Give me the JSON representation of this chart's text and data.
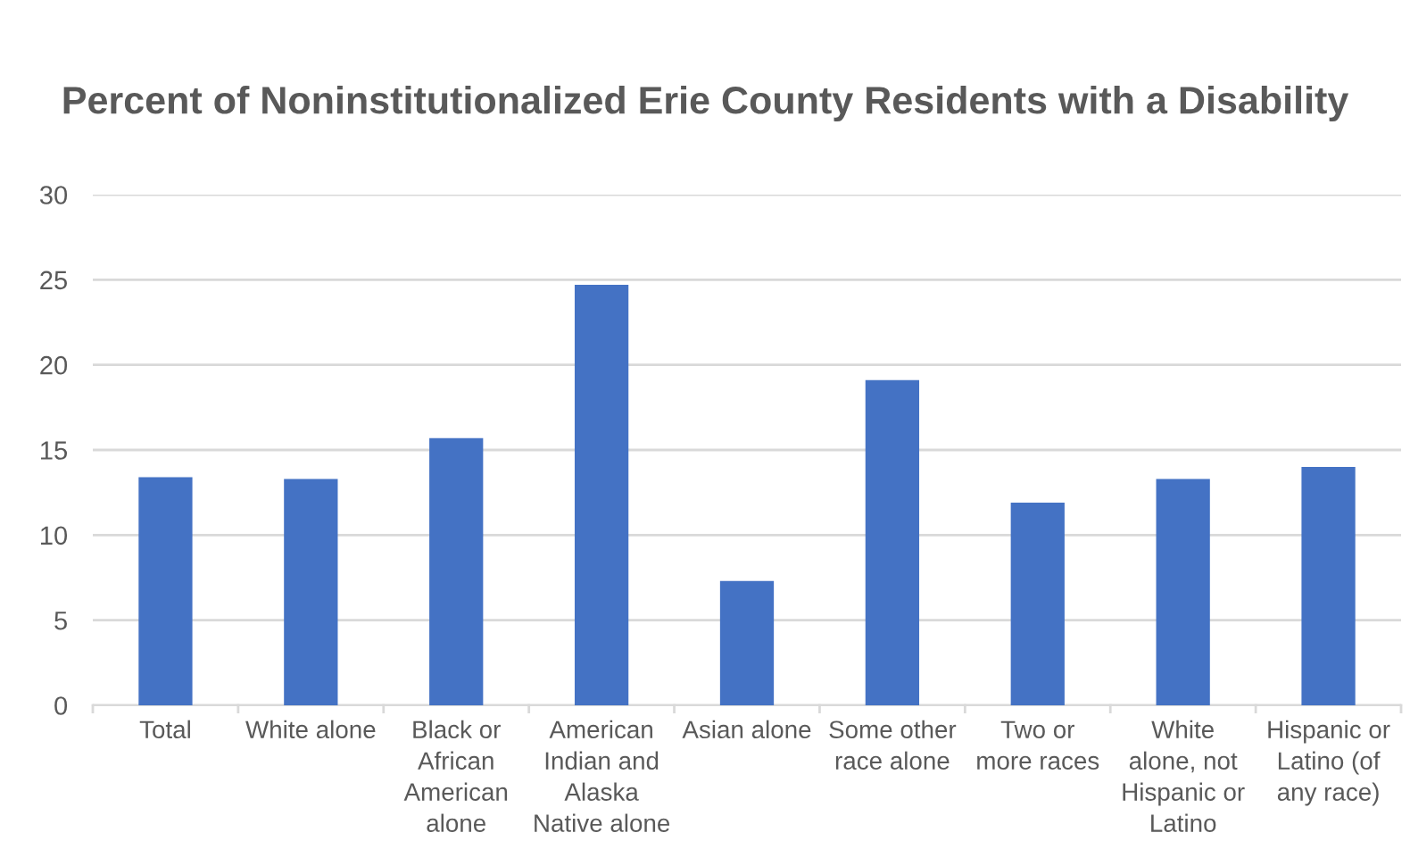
{
  "chart_data": {
    "type": "bar",
    "title": "Percent of Noninstitutionalized Erie County Residents with a Disability",
    "categories": [
      "Total",
      "White alone",
      "Black or\nAfrican\nAmerican\nalone",
      "American\nIndian and\nAlaska\nNative alone",
      "Asian alone",
      "Some other\nrace alone",
      "Two or\nmore races",
      "White\nalone, not\nHispanic or\nLatino",
      "Hispanic or\nLatino (of\nany race)"
    ],
    "values": [
      13.4,
      13.3,
      15.7,
      24.7,
      7.3,
      19.1,
      11.9,
      13.3,
      14.0
    ],
    "color": "#4472c4",
    "ylim": [
      0,
      30
    ],
    "yticks": [
      0,
      5,
      10,
      15,
      20,
      25,
      30
    ],
    "grid": "y",
    "legend": false
  }
}
